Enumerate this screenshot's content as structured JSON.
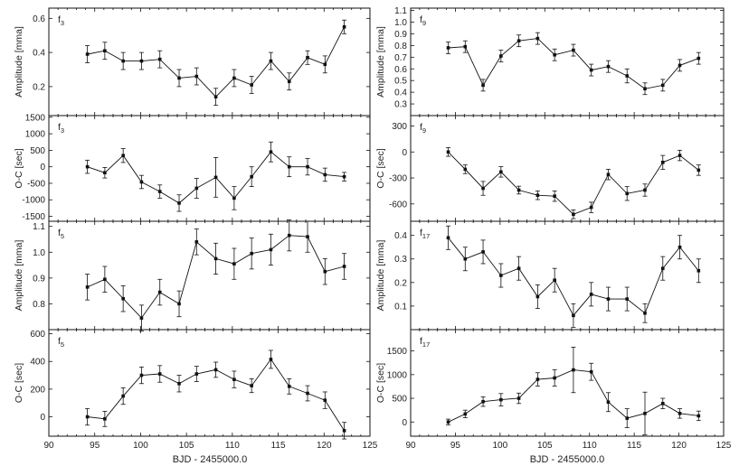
{
  "figure": {
    "xlabel": "BJD - 2455000.0"
  },
  "chart_data": [
    {
      "type": "line",
      "panel": "left-1",
      "label_main": "f",
      "label_sub": "3",
      "ylabel": "Amplitude [mma]",
      "xlim": [
        90,
        125
      ],
      "ylim": [
        0.03,
        0.66
      ],
      "yticks": [
        0.2,
        0.4,
        0.6
      ],
      "yticklabels": [
        "0.2",
        "0.4",
        "0.6"
      ],
      "show_xticklabels": false,
      "x": [
        94.2,
        96.1,
        98.1,
        100.1,
        102.1,
        104.2,
        106.1,
        108.2,
        110.2,
        112.1,
        114.2,
        116.2,
        118.2,
        120.1,
        122.2
      ],
      "y": [
        0.39,
        0.41,
        0.35,
        0.35,
        0.36,
        0.25,
        0.26,
        0.14,
        0.25,
        0.21,
        0.35,
        0.23,
        0.37,
        0.33,
        0.55
      ],
      "err": [
        0.05,
        0.05,
        0.05,
        0.05,
        0.05,
        0.05,
        0.05,
        0.05,
        0.05,
        0.05,
        0.05,
        0.05,
        0.04,
        0.05,
        0.04
      ]
    },
    {
      "type": "line",
      "panel": "left-2",
      "label_main": "f",
      "label_sub": "3",
      "ylabel": "O-C [sec]",
      "xlim": [
        90,
        125
      ],
      "ylim": [
        -1650,
        1550
      ],
      "yticks": [
        -1500,
        -1000,
        -500,
        0,
        500,
        1000,
        1500
      ],
      "yticklabels": [
        "-1500",
        "-1000",
        "-500",
        "0",
        "500",
        "1000",
        "1500"
      ],
      "show_xticklabels": false,
      "x": [
        94.2,
        96.1,
        98.1,
        100.1,
        102.1,
        104.2,
        106.1,
        108.2,
        110.2,
        112.1,
        114.2,
        116.2,
        118.2,
        120.1,
        122.2
      ],
      "y": [
        0,
        -180,
        340,
        -460,
        -750,
        -1100,
        -650,
        -320,
        -950,
        -300,
        450,
        0,
        0,
        -240,
        -300
      ],
      "err": [
        200,
        160,
        210,
        200,
        200,
        250,
        300,
        600,
        350,
        300,
        300,
        300,
        250,
        200,
        130
      ]
    },
    {
      "type": "line",
      "panel": "left-3",
      "label_main": "f",
      "label_sub": "5",
      "ylabel": "Amplitude [mma]",
      "xlim": [
        90,
        125
      ],
      "ylim": [
        0.7,
        1.12
      ],
      "yticks": [
        0.8,
        0.9,
        1.0,
        1.1
      ],
      "yticklabels": [
        "0.8",
        "0.9",
        "1.0",
        "1.1"
      ],
      "show_xticklabels": false,
      "x": [
        94.2,
        96.1,
        98.1,
        100.1,
        102.1,
        104.2,
        106.1,
        108.2,
        110.2,
        112.1,
        114.2,
        116.2,
        118.2,
        120.1,
        122.2
      ],
      "y": [
        0.865,
        0.895,
        0.82,
        0.745,
        0.845,
        0.8,
        1.04,
        0.975,
        0.955,
        0.995,
        1.01,
        1.065,
        1.06,
        0.925,
        0.945
      ],
      "err": [
        0.05,
        0.05,
        0.05,
        0.05,
        0.05,
        0.05,
        0.05,
        0.06,
        0.06,
        0.06,
        0.06,
        0.06,
        0.06,
        0.05,
        0.05
      ]
    },
    {
      "type": "line",
      "panel": "left-4",
      "label_main": "f",
      "label_sub": "5",
      "ylabel": "O-C [sec]",
      "xlim": [
        90,
        125
      ],
      "ylim": [
        -140,
        630
      ],
      "yticks": [
        0,
        200,
        400,
        600
      ],
      "yticklabels": [
        "0",
        "200",
        "400",
        "600"
      ],
      "show_xticklabels": true,
      "xticks": [
        90,
        95,
        100,
        105,
        110,
        115,
        120,
        125
      ],
      "xticklabels": [
        "90",
        "95",
        "100",
        "105",
        "110",
        "115",
        "120",
        "125"
      ],
      "x": [
        94.2,
        96.1,
        98.1,
        100.1,
        102.1,
        104.2,
        106.1,
        108.2,
        110.2,
        112.1,
        114.2,
        116.2,
        118.2,
        120.1,
        122.2
      ],
      "y": [
        0,
        -15,
        150,
        300,
        310,
        240,
        310,
        340,
        270,
        225,
        415,
        220,
        170,
        120,
        -100
      ],
      "err": [
        60,
        55,
        60,
        60,
        60,
        60,
        55,
        55,
        60,
        50,
        65,
        55,
        55,
        60,
        60
      ]
    },
    {
      "type": "line",
      "panel": "right-1",
      "label_main": "f",
      "label_sub": "9",
      "ylabel": "Amplitude [mma]",
      "xlim": [
        90,
        125
      ],
      "ylim": [
        0.2,
        1.12
      ],
      "yticks": [
        0.3,
        0.5,
        0.7,
        0.9,
        1.1
      ],
      "yticklabels": [
        "0.3",
        "0.5",
        "0.7",
        "0.9",
        "1.1"
      ],
      "extra_yticks": [
        0.4,
        0.6,
        0.8,
        1.0
      ],
      "extra_yticklabels": [
        "0.4",
        "0.6",
        "0.8",
        "1.0"
      ],
      "show_xticklabels": false,
      "x": [
        94.2,
        96.1,
        98.1,
        100.1,
        102.1,
        104.2,
        106.1,
        108.2,
        110.2,
        112.1,
        114.2,
        116.2,
        118.2,
        120.1,
        122.2
      ],
      "y": [
        0.78,
        0.79,
        0.46,
        0.71,
        0.84,
        0.86,
        0.72,
        0.76,
        0.59,
        0.62,
        0.54,
        0.43,
        0.46,
        0.63,
        0.69
      ],
      "err": [
        0.05,
        0.05,
        0.05,
        0.05,
        0.05,
        0.05,
        0.05,
        0.05,
        0.05,
        0.05,
        0.06,
        0.05,
        0.05,
        0.05,
        0.05
      ]
    },
    {
      "type": "line",
      "panel": "right-2",
      "label_main": "f",
      "label_sub": "9",
      "ylabel": "O-C [sec]",
      "xlim": [
        90,
        125
      ],
      "ylim": [
        -800,
        420
      ],
      "yticks": [
        -600,
        -300,
        0,
        300
      ],
      "yticklabels": [
        "-600",
        "-300",
        "0",
        "300"
      ],
      "show_xticklabels": false,
      "x": [
        94.2,
        96.1,
        98.1,
        100.1,
        102.1,
        104.2,
        106.1,
        108.2,
        110.2,
        112.1,
        114.2,
        116.2,
        118.2,
        120.1,
        122.2
      ],
      "y": [
        0,
        -200,
        -420,
        -230,
        -440,
        -500,
        -510,
        -720,
        -640,
        -260,
        -480,
        -440,
        -120,
        -40,
        -210
      ],
      "err": [
        50,
        50,
        80,
        60,
        45,
        50,
        60,
        50,
        60,
        60,
        80,
        70,
        80,
        60,
        60
      ]
    },
    {
      "type": "line",
      "panel": "right-3",
      "label_main": "f",
      "label_sub": "17",
      "ylabel": "Amplitude [mma]",
      "xlim": [
        90,
        125
      ],
      "ylim": [
        0.0,
        0.46
      ],
      "yticks": [
        0.1,
        0.2,
        0.3,
        0.4
      ],
      "yticklabels": [
        "0.1",
        "0.2",
        "0.3",
        "0.4"
      ],
      "show_xticklabels": false,
      "x": [
        94.2,
        96.1,
        98.1,
        100.1,
        102.1,
        104.2,
        106.1,
        108.2,
        110.2,
        112.1,
        114.2,
        116.2,
        118.2,
        120.1,
        122.2
      ],
      "y": [
        0.39,
        0.3,
        0.33,
        0.23,
        0.26,
        0.14,
        0.21,
        0.06,
        0.15,
        0.13,
        0.13,
        0.07,
        0.26,
        0.35,
        0.25
      ],
      "err": [
        0.05,
        0.05,
        0.05,
        0.05,
        0.05,
        0.05,
        0.05,
        0.05,
        0.05,
        0.05,
        0.05,
        0.04,
        0.05,
        0.05,
        0.05
      ]
    },
    {
      "type": "line",
      "panel": "right-4",
      "label_main": "f",
      "label_sub": "17",
      "ylabel": "O-C [sec]",
      "xlim": [
        90,
        125
      ],
      "ylim": [
        -300,
        1950
      ],
      "yticks": [
        0,
        500,
        1000,
        1500
      ],
      "yticklabels": [
        "0",
        "500",
        "1000",
        "1500"
      ],
      "show_xticklabels": true,
      "xticks": [
        90,
        95,
        100,
        105,
        110,
        115,
        120,
        125
      ],
      "xticklabels": [
        "90",
        "95",
        "100",
        "105",
        "110",
        "115",
        "120",
        "125"
      ],
      "x": [
        94.2,
        96.1,
        98.1,
        100.1,
        102.1,
        104.2,
        106.1,
        108.2,
        110.2,
        112.1,
        114.2,
        116.2,
        118.2,
        120.1,
        122.2
      ],
      "y": [
        0,
        170,
        430,
        470,
        500,
        900,
        930,
        1100,
        1060,
        420,
        80,
        180,
        390,
        180,
        130
      ],
      "err": [
        60,
        80,
        100,
        130,
        110,
        140,
        170,
        480,
        180,
        200,
        200,
        450,
        110,
        100,
        100
      ]
    }
  ]
}
